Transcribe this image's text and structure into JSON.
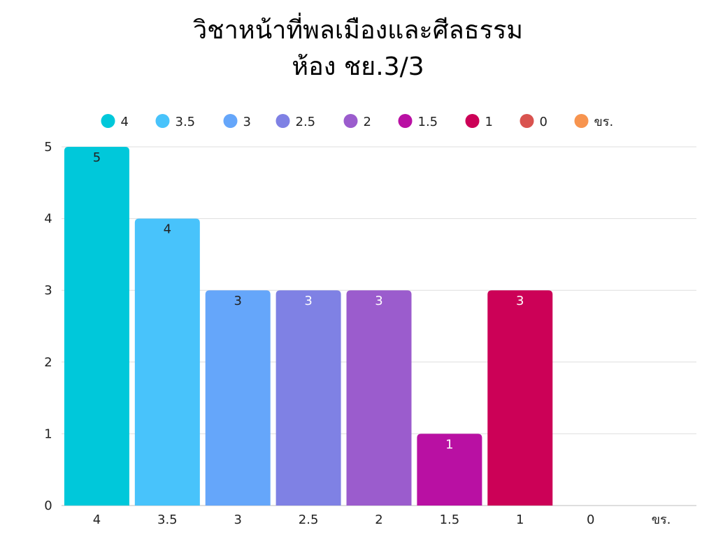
{
  "chart_data": {
    "type": "bar",
    "title": "วิชาหน้าที่พลเมืองและศีลธรรม",
    "subtitle": "ห้อง ชย.3/3",
    "categories": [
      "4",
      "3.5",
      "3",
      "2.5",
      "2",
      "1.5",
      "1",
      "0",
      "ขร."
    ],
    "values": [
      5,
      4,
      3,
      3,
      3,
      1,
      3,
      0,
      0
    ],
    "colors": [
      "#00c8da",
      "#48c3fb",
      "#65a6fa",
      "#7f81e4",
      "#9b5ccd",
      "#b910a3",
      "#cc0157",
      "#d9534f",
      "#f7944f"
    ],
    "label_colors": [
      "#222222",
      "#222222",
      "#222222",
      "#ffffff",
      "#ffffff",
      "#ffffff",
      "#ffffff",
      "#ffffff",
      "#ffffff"
    ],
    "ylim": [
      0,
      5
    ],
    "yticks": [
      0,
      1,
      2,
      3,
      4,
      5
    ],
    "grid": true,
    "legend_position": "top",
    "xlabel": "",
    "ylabel": ""
  }
}
